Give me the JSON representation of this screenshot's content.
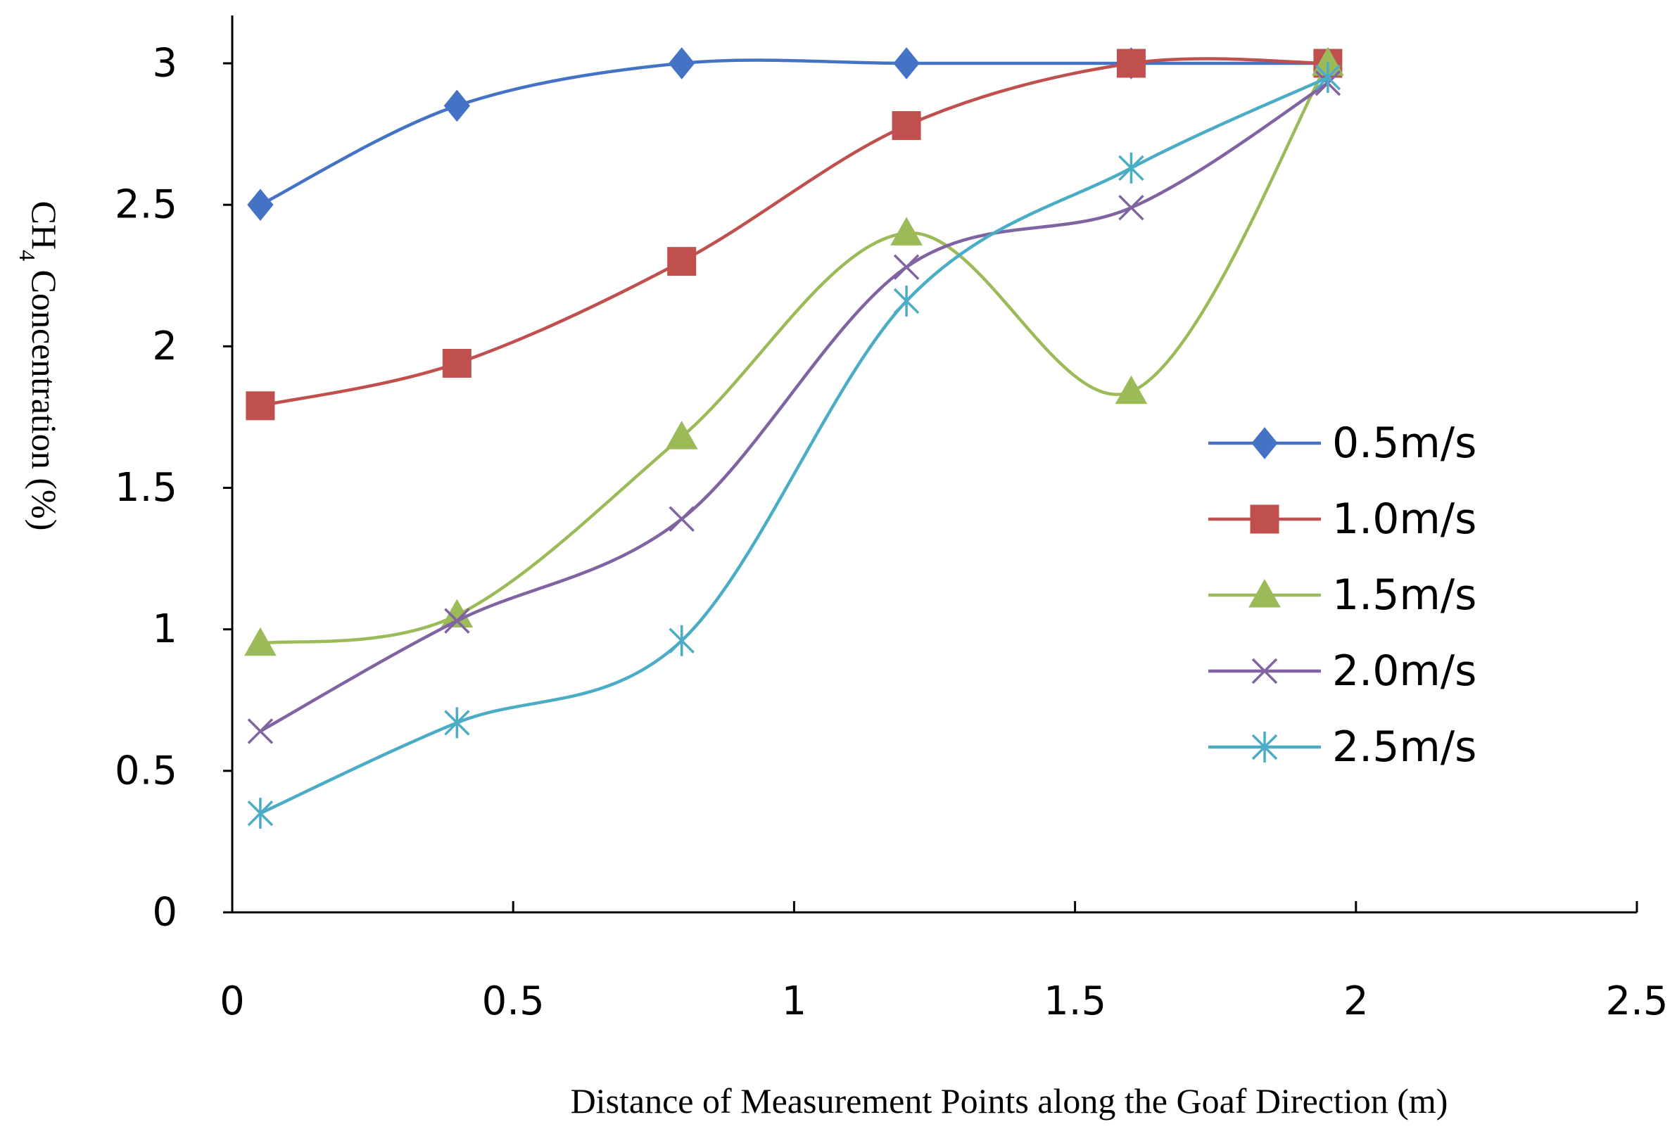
{
  "chart_data": {
    "type": "line",
    "title": "",
    "xlabel": "Distance of Measurement Points along the Goaf Direction (m)",
    "ylabel": {
      "prefix": "CH",
      "subscript": "4",
      "suffix": " Concentration (%)"
    },
    "xlim": [
      0,
      2.5
    ],
    "ylim": [
      0,
      3
    ],
    "x_ticks": [
      "0",
      "0.5",
      "1",
      "1.5",
      "2",
      "2.5"
    ],
    "y_ticks": [
      "0",
      "0.5",
      "1",
      "1.5",
      "2",
      "2.5",
      "3"
    ],
    "x": [
      0.05,
      0.4,
      0.8,
      1.2,
      1.6,
      1.95
    ],
    "legend_position": "right",
    "grid": false,
    "series": [
      {
        "name": "0.5m/s",
        "marker": "diamond",
        "color": "#4472C4",
        "values": [
          2.5,
          2.85,
          3.0,
          3.0,
          3.0,
          3.0
        ]
      },
      {
        "name": "1.0m/s",
        "marker": "square",
        "color": "#C0504D",
        "values": [
          1.79,
          1.94,
          2.3,
          2.78,
          3.0,
          3.0
        ]
      },
      {
        "name": "1.5m/s",
        "marker": "triangle",
        "color": "#9BBB59",
        "values": [
          0.95,
          1.05,
          1.68,
          2.4,
          1.84,
          3.0
        ]
      },
      {
        "name": "2.0m/s",
        "marker": "x",
        "color": "#8064A2",
        "values": [
          0.64,
          1.03,
          1.39,
          2.28,
          2.49,
          2.93
        ]
      },
      {
        "name": "2.5m/s",
        "marker": "star",
        "color": "#4BACC6",
        "values": [
          0.35,
          0.67,
          0.96,
          2.16,
          2.63,
          2.95
        ]
      }
    ]
  }
}
